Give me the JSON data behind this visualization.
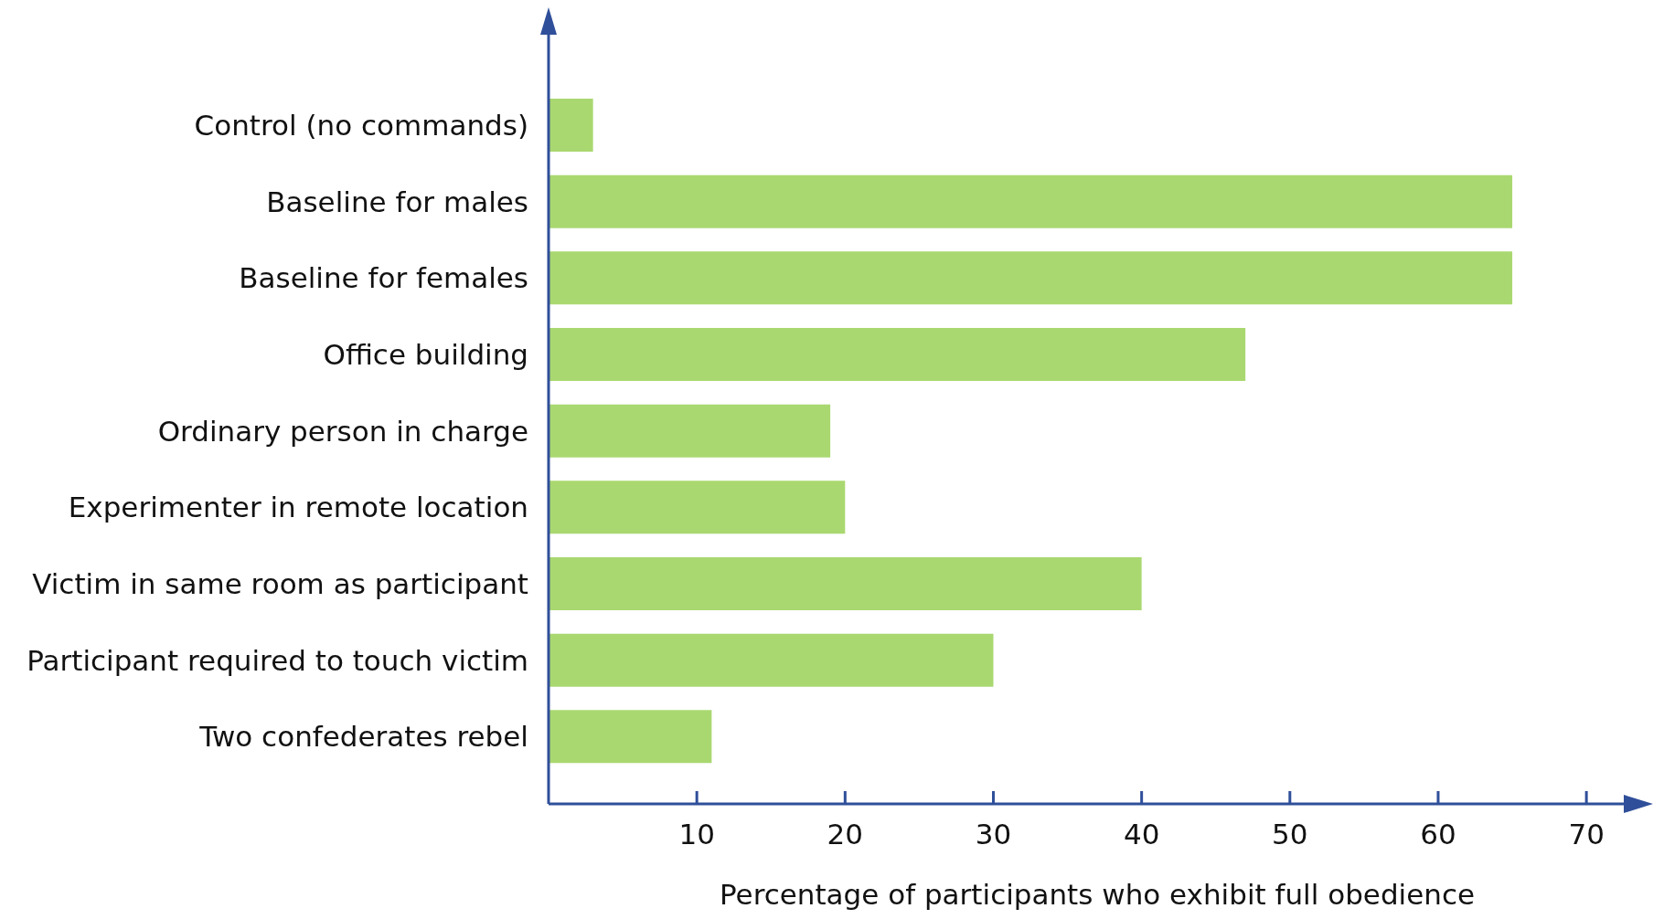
{
  "chart_data": {
    "type": "bar",
    "orientation": "horizontal",
    "categories": [
      "Control (no commands)",
      "Baseline for males",
      "Baseline for females",
      "Office building",
      "Ordinary person in charge",
      "Experimenter in remote location",
      "Victim in same room as participant",
      "Participant required to touch victim",
      "Two confederates rebel"
    ],
    "values": [
      3,
      65,
      65,
      47,
      19,
      20,
      40,
      30,
      11
    ],
    "color": "#a9d870",
    "xlabel": "Percentage of participants who exhibit full obedience",
    "xlim": [
      0,
      74
    ],
    "xticks": [
      10,
      20,
      30,
      40,
      50,
      60,
      70
    ]
  }
}
